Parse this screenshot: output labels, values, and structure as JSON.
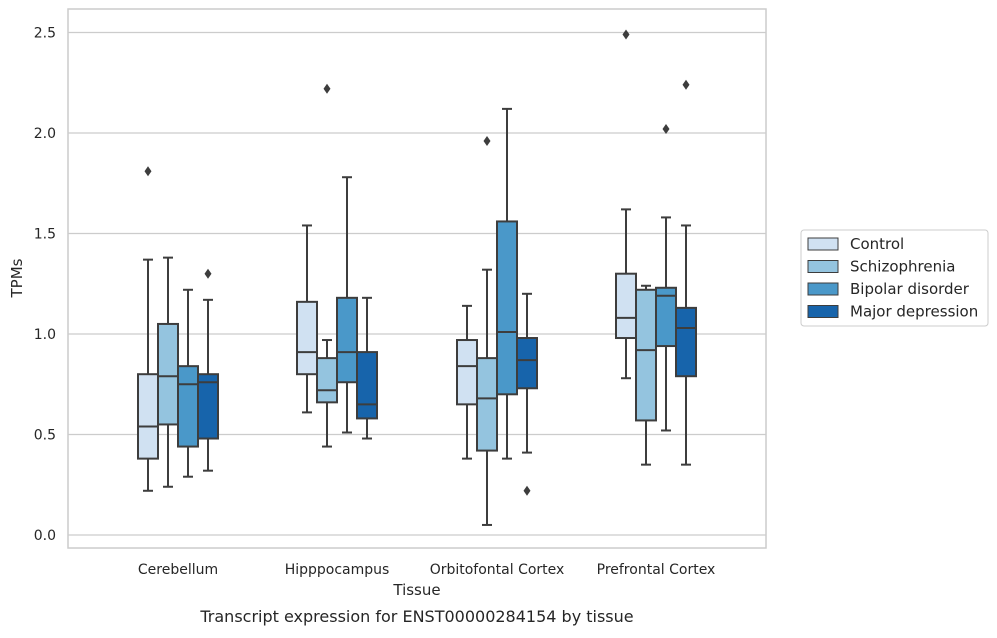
{
  "caption": "Transcript expression for ENST00000284154 by tissue",
  "chart_data": {
    "type": "box",
    "xlabel": "Tissue",
    "ylabel": "TPMs",
    "ylim": [
      -0.06,
      2.62
    ],
    "yticks": [
      0.0,
      0.5,
      1.0,
      1.5,
      2.0,
      2.5
    ],
    "ytick_labels": [
      "0.0",
      "0.5",
      "1.0",
      "1.5",
      "2.0",
      "2.5"
    ],
    "grid": "horizontal",
    "legend_position": "right",
    "categories": [
      "Cerebellum",
      "Hipppocampus",
      "Orbitofontal Cortex",
      "Prefrontal Cortex"
    ],
    "series": [
      {
        "name": "Control",
        "color": "#d0e1f2",
        "boxes": [
          {
            "whislo": 0.22,
            "q1": 0.38,
            "med": 0.54,
            "q3": 0.8,
            "whishi": 1.37,
            "fliers": [
              1.81
            ]
          },
          {
            "whislo": 0.61,
            "q1": 0.8,
            "med": 0.91,
            "q3": 1.16,
            "whishi": 1.54,
            "fliers": []
          },
          {
            "whislo": 0.38,
            "q1": 0.65,
            "med": 0.84,
            "q3": 0.97,
            "whishi": 1.14,
            "fliers": []
          },
          {
            "whislo": 0.78,
            "q1": 0.98,
            "med": 1.08,
            "q3": 1.3,
            "whishi": 1.62,
            "fliers": [
              2.49
            ]
          }
        ]
      },
      {
        "name": "Schizophrenia",
        "color": "#94c4df",
        "boxes": [
          {
            "whislo": 0.24,
            "q1": 0.55,
            "med": 0.79,
            "q3": 1.05,
            "whishi": 1.38,
            "fliers": []
          },
          {
            "whislo": 0.44,
            "q1": 0.66,
            "med": 0.72,
            "q3": 0.88,
            "whishi": 0.97,
            "fliers": [
              2.22
            ]
          },
          {
            "whislo": 0.05,
            "q1": 0.42,
            "med": 0.68,
            "q3": 0.88,
            "whishi": 1.32,
            "fliers": [
              1.96
            ]
          },
          {
            "whislo": 0.35,
            "q1": 0.57,
            "med": 0.92,
            "q3": 1.22,
            "whishi": 1.24,
            "fliers": []
          }
        ]
      },
      {
        "name": "Bipolar disorder",
        "color": "#4a98c9",
        "boxes": [
          {
            "whislo": 0.29,
            "q1": 0.44,
            "med": 0.75,
            "q3": 0.84,
            "whishi": 1.22,
            "fliers": []
          },
          {
            "whislo": 0.51,
            "q1": 0.76,
            "med": 0.91,
            "q3": 1.18,
            "whishi": 1.78,
            "fliers": []
          },
          {
            "whislo": 0.38,
            "q1": 0.7,
            "med": 1.01,
            "q3": 1.56,
            "whishi": 2.12,
            "fliers": []
          },
          {
            "whislo": 0.52,
            "q1": 0.94,
            "med": 1.19,
            "q3": 1.23,
            "whishi": 1.58,
            "fliers": [
              2.02
            ]
          }
        ]
      },
      {
        "name": "Major depression",
        "color": "#1764ab",
        "boxes": [
          {
            "whislo": 0.32,
            "q1": 0.48,
            "med": 0.76,
            "q3": 0.8,
            "whishi": 1.17,
            "fliers": [
              1.3
            ]
          },
          {
            "whislo": 0.48,
            "q1": 0.58,
            "med": 0.65,
            "q3": 0.91,
            "whishi": 1.18,
            "fliers": []
          },
          {
            "whislo": 0.41,
            "q1": 0.73,
            "med": 0.87,
            "q3": 0.98,
            "whishi": 1.2,
            "fliers": [
              0.22
            ]
          },
          {
            "whislo": 0.35,
            "q1": 0.79,
            "med": 1.03,
            "q3": 1.13,
            "whishi": 1.54,
            "fliers": [
              2.24
            ]
          }
        ]
      }
    ]
  }
}
